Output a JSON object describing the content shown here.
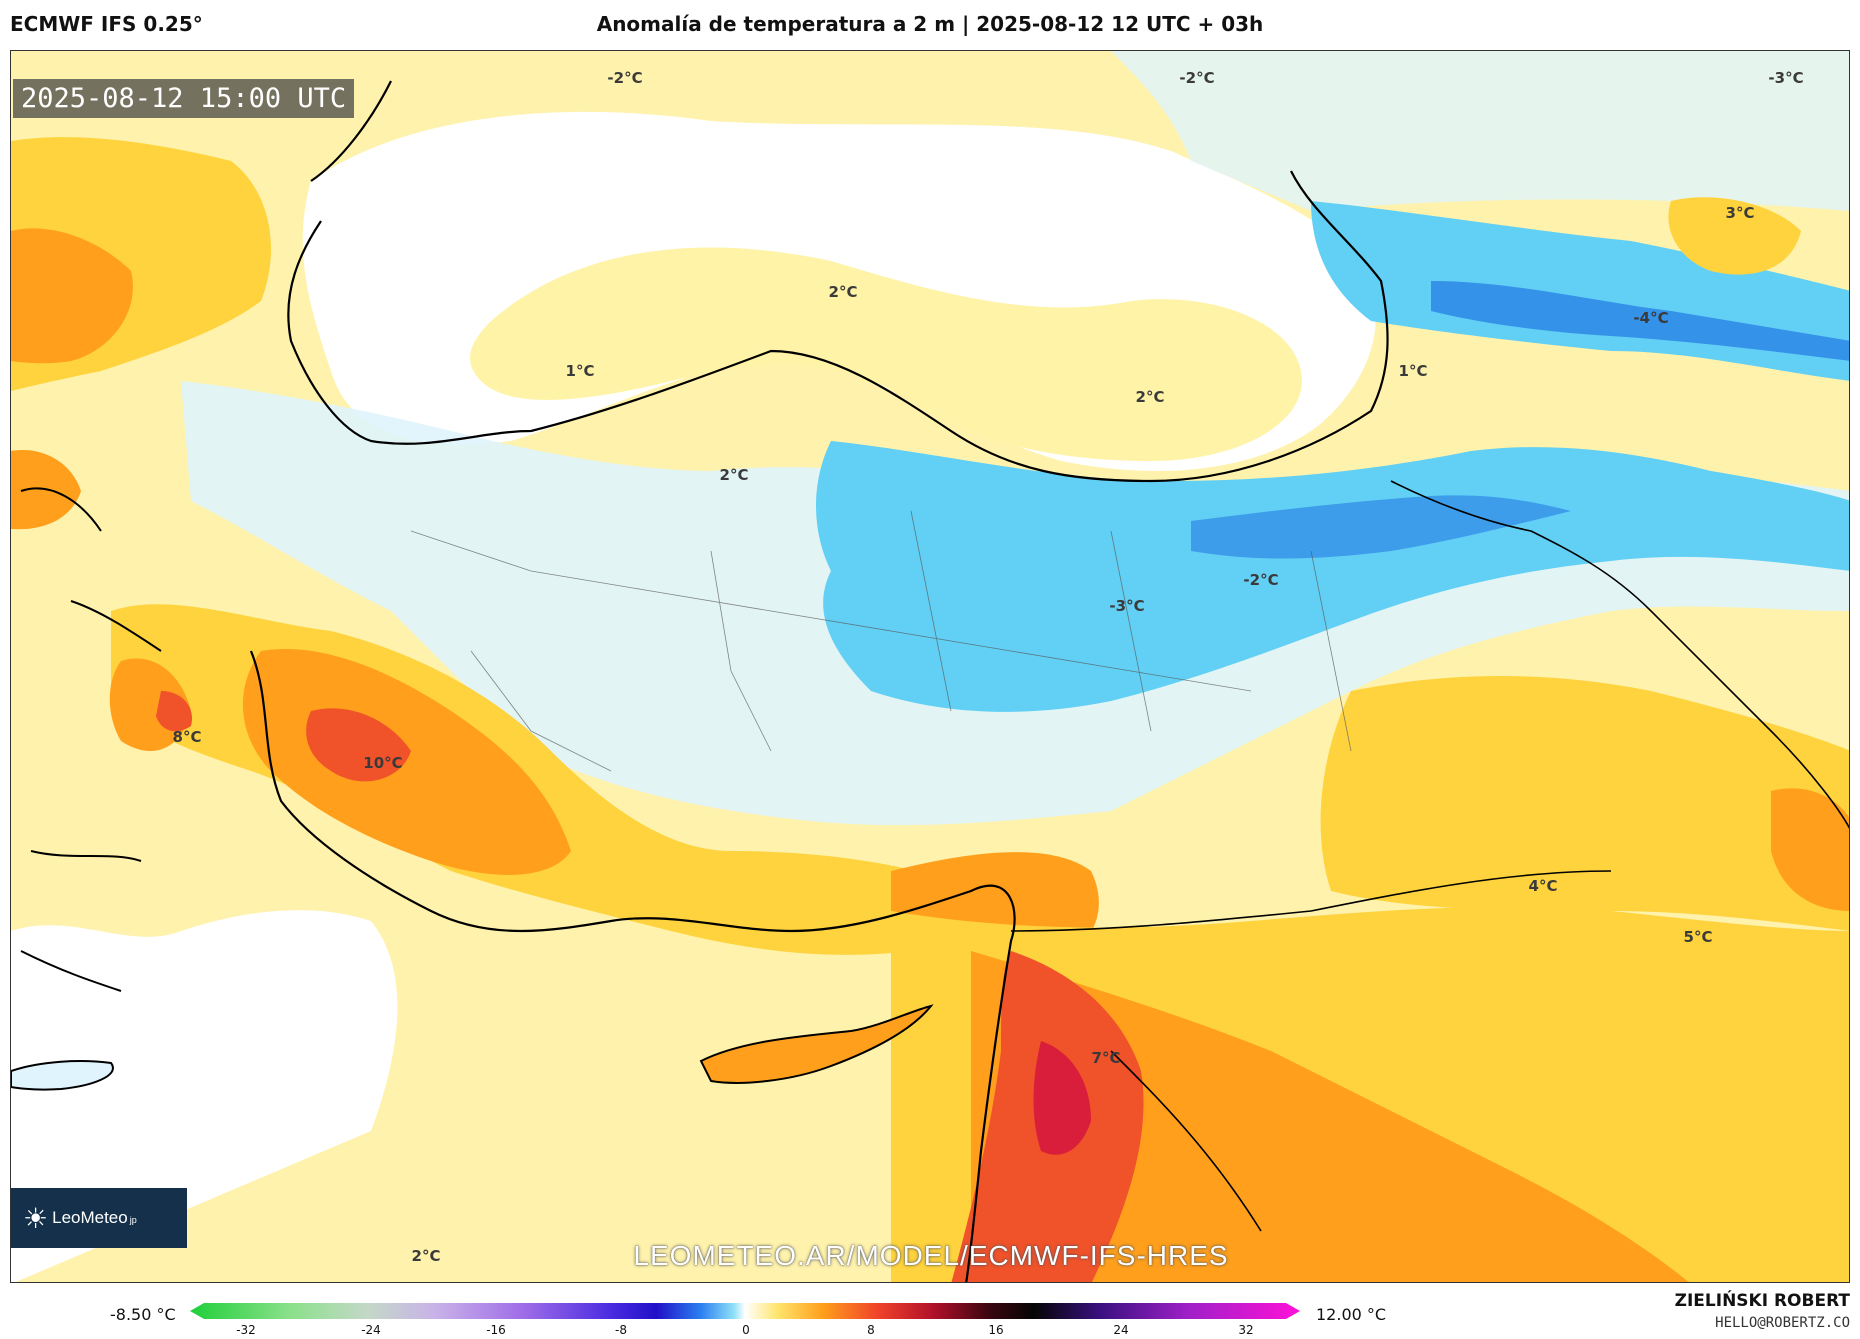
{
  "header": {
    "model": "ECMWF IFS 0.25°",
    "title": "Anomalía de temperatura a 2 m | 2025-08-12 12 UTC + 03h"
  },
  "map": {
    "timestamp": "2025-08-12 15:00 UTC",
    "watermark": "LEOMETEO.AR/MODEL/ECMWF-IFS-HRES",
    "logo_text": "LeoMeteo",
    "logo_suffix": "jp",
    "labels": [
      {
        "text": "-2°C"
      },
      {
        "text": "-2°C"
      },
      {
        "text": "-3°C"
      },
      {
        "text": "3°C"
      },
      {
        "text": "-4°C"
      },
      {
        "text": "2°C"
      },
      {
        "text": "1°C"
      },
      {
        "text": "2°C"
      },
      {
        "text": "1°C"
      },
      {
        "text": "2°C"
      },
      {
        "text": "-2°C"
      },
      {
        "text": "-3°C"
      },
      {
        "text": "8°C"
      },
      {
        "text": "10°C"
      },
      {
        "text": "4°C"
      },
      {
        "text": "5°C"
      },
      {
        "text": "7°C"
      },
      {
        "text": "2°C"
      }
    ]
  },
  "colors": {
    "land_base": "#fdf3b0",
    "sea": "#ffffff",
    "light_blue": "#dff4fc",
    "blue": "#62cff4",
    "deep_blue": "#2d87e6",
    "light_yellow": "#fff2a6",
    "yellow": "#ffd33d",
    "orange": "#ff9f1c",
    "red_orange": "#f0522a",
    "red": "#d91e3c"
  },
  "colorbar": {
    "min_label": "-8.50 °C",
    "max_label": "12.00 °C",
    "ticks": [
      "-32",
      "-24",
      "-16",
      "-8",
      "0",
      "8",
      "16",
      "24",
      "32"
    ]
  },
  "credits": {
    "author": "ZIELIŃSKI ROBERT",
    "email": "HELLO@ROBERTZ.CO"
  }
}
